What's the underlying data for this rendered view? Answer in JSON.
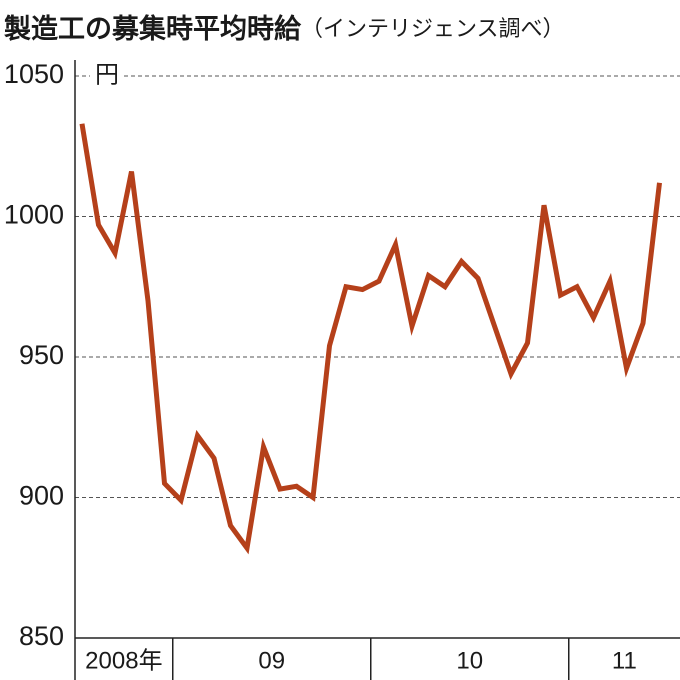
{
  "chart_data": {
    "type": "line",
    "title": "製造工の募集時平均時給",
    "subtitle": "（インテリジェンス調べ）",
    "unit": "円",
    "categories": [
      "2008年",
      null,
      null,
      null,
      null,
      null,
      "09",
      null,
      null,
      null,
      null,
      null,
      null,
      null,
      null,
      null,
      null,
      null,
      "10",
      null,
      null,
      null,
      null,
      null,
      null,
      null,
      null,
      null,
      null,
      null,
      "11",
      null,
      null,
      null,
      null,
      null
    ],
    "values": [
      1033,
      997,
      987,
      1016,
      970,
      905,
      899,
      922,
      914,
      890,
      882,
      918,
      903,
      904,
      900,
      954,
      975,
      974,
      977,
      990,
      961,
      979,
      975,
      984,
      978,
      961,
      944,
      955,
      1004,
      972,
      975,
      964,
      977,
      946,
      962,
      1012
    ],
    "color": "#b5401a",
    "ylim": [
      850,
      1050
    ],
    "yticks": [
      850,
      900,
      950,
      1000,
      1050
    ],
    "grid": true
  }
}
